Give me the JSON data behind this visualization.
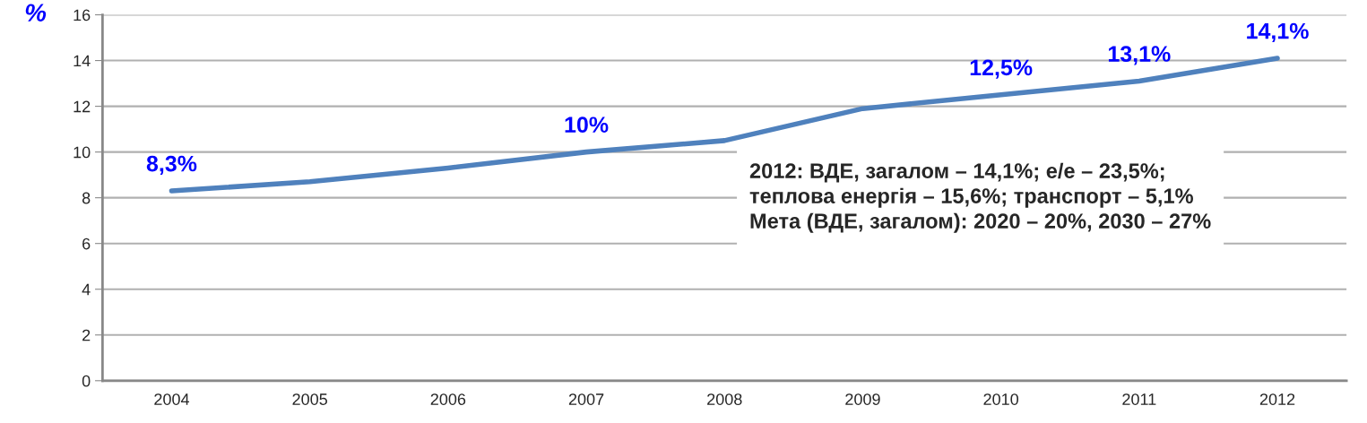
{
  "chart_data": {
    "type": "line",
    "ylabel": "%",
    "categories": [
      "2004",
      "2005",
      "2006",
      "2007",
      "2008",
      "2009",
      "2010",
      "2011",
      "2012"
    ],
    "series": [
      {
        "color": "#4f81bd",
        "values": [
          8.3,
          8.7,
          9.3,
          10.0,
          10.5,
          11.9,
          12.5,
          13.1,
          14.1
        ],
        "value_labels": [
          "8,3%",
          null,
          null,
          "10%",
          null,
          null,
          "12,5%",
          "13,1%",
          "14,1%"
        ]
      }
    ],
    "ylim": [
      0,
      16
    ],
    "yticks": [
      0,
      2,
      4,
      6,
      8,
      10,
      12,
      14,
      16
    ],
    "grid": "y",
    "marker": "none",
    "line_style": "solid",
    "annotations": [
      "2012: ВДЕ, загалом – 14,1%; е/е – 23,5%;\nтеплова енергія – 15,6%; транспорт – 5,1%\nМета (ВДЕ, загалом): 2020 – 20%, 2030 – 27%"
    ]
  }
}
